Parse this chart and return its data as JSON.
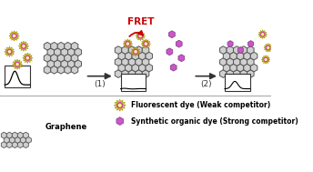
{
  "title": "FRET",
  "bg_color": "#ffffff",
  "graphene_color": "#d0d0d0",
  "graphene_edge": "#555555",
  "dye_outer_color": "#e8e800",
  "dye_inner_color": "#cc44aa",
  "dye_center_color": "#ffff88",
  "organic_dye_color": "#cc55cc",
  "organic_dye_edge": "#884488",
  "arrow_color": "#333333",
  "fret_arrow_color": "#cc0000",
  "legend_text_color": "#000000",
  "label1": "(1)",
  "label2": "(2)",
  "legend_graphene": "Graphene",
  "legend_dye": "Fluorescent dye (Weak competitor)",
  "legend_organic": "Synthetic organic dye (Strong competitor)"
}
